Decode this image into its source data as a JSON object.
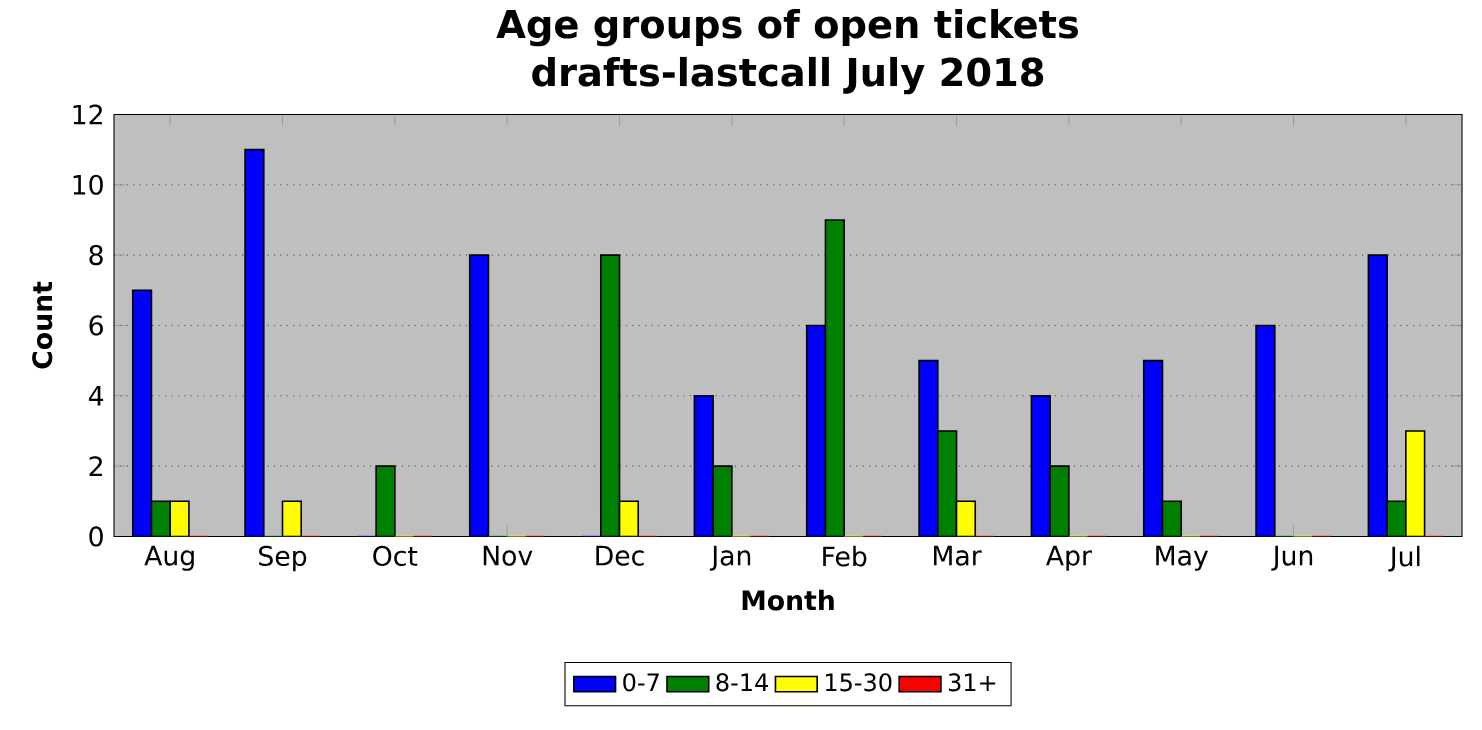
{
  "chart_data": {
    "type": "bar",
    "title": "Age groups of open tickets",
    "subtitle": "drafts-lastcall July 2018",
    "xlabel": "Month",
    "ylabel": "Count",
    "categories": [
      "Aug",
      "Sep",
      "Oct",
      "Nov",
      "Dec",
      "Jan",
      "Feb",
      "Mar",
      "Apr",
      "May",
      "Jun",
      "Jul"
    ],
    "series": [
      {
        "name": "0-7",
        "color": "#0000ff",
        "values": [
          7,
          11,
          0,
          8,
          0,
          4,
          6,
          5,
          4,
          5,
          6,
          8
        ]
      },
      {
        "name": "8-14",
        "color": "#008000",
        "values": [
          1,
          0,
          2,
          0,
          8,
          2,
          9,
          3,
          2,
          1,
          0,
          1
        ]
      },
      {
        "name": "15-30",
        "color": "#ffff00",
        "values": [
          1,
          1,
          0,
          0,
          1,
          0,
          0,
          1,
          0,
          0,
          0,
          3
        ]
      },
      {
        "name": "31+",
        "color": "#ff0000",
        "values": [
          0,
          0,
          0,
          0,
          0,
          0,
          0,
          0,
          0,
          0,
          0,
          0
        ]
      }
    ],
    "ylim": [
      0,
      12
    ],
    "yticks": [
      0,
      2,
      4,
      6,
      8,
      10,
      12
    ],
    "grid": "y",
    "legend": "bottom"
  }
}
